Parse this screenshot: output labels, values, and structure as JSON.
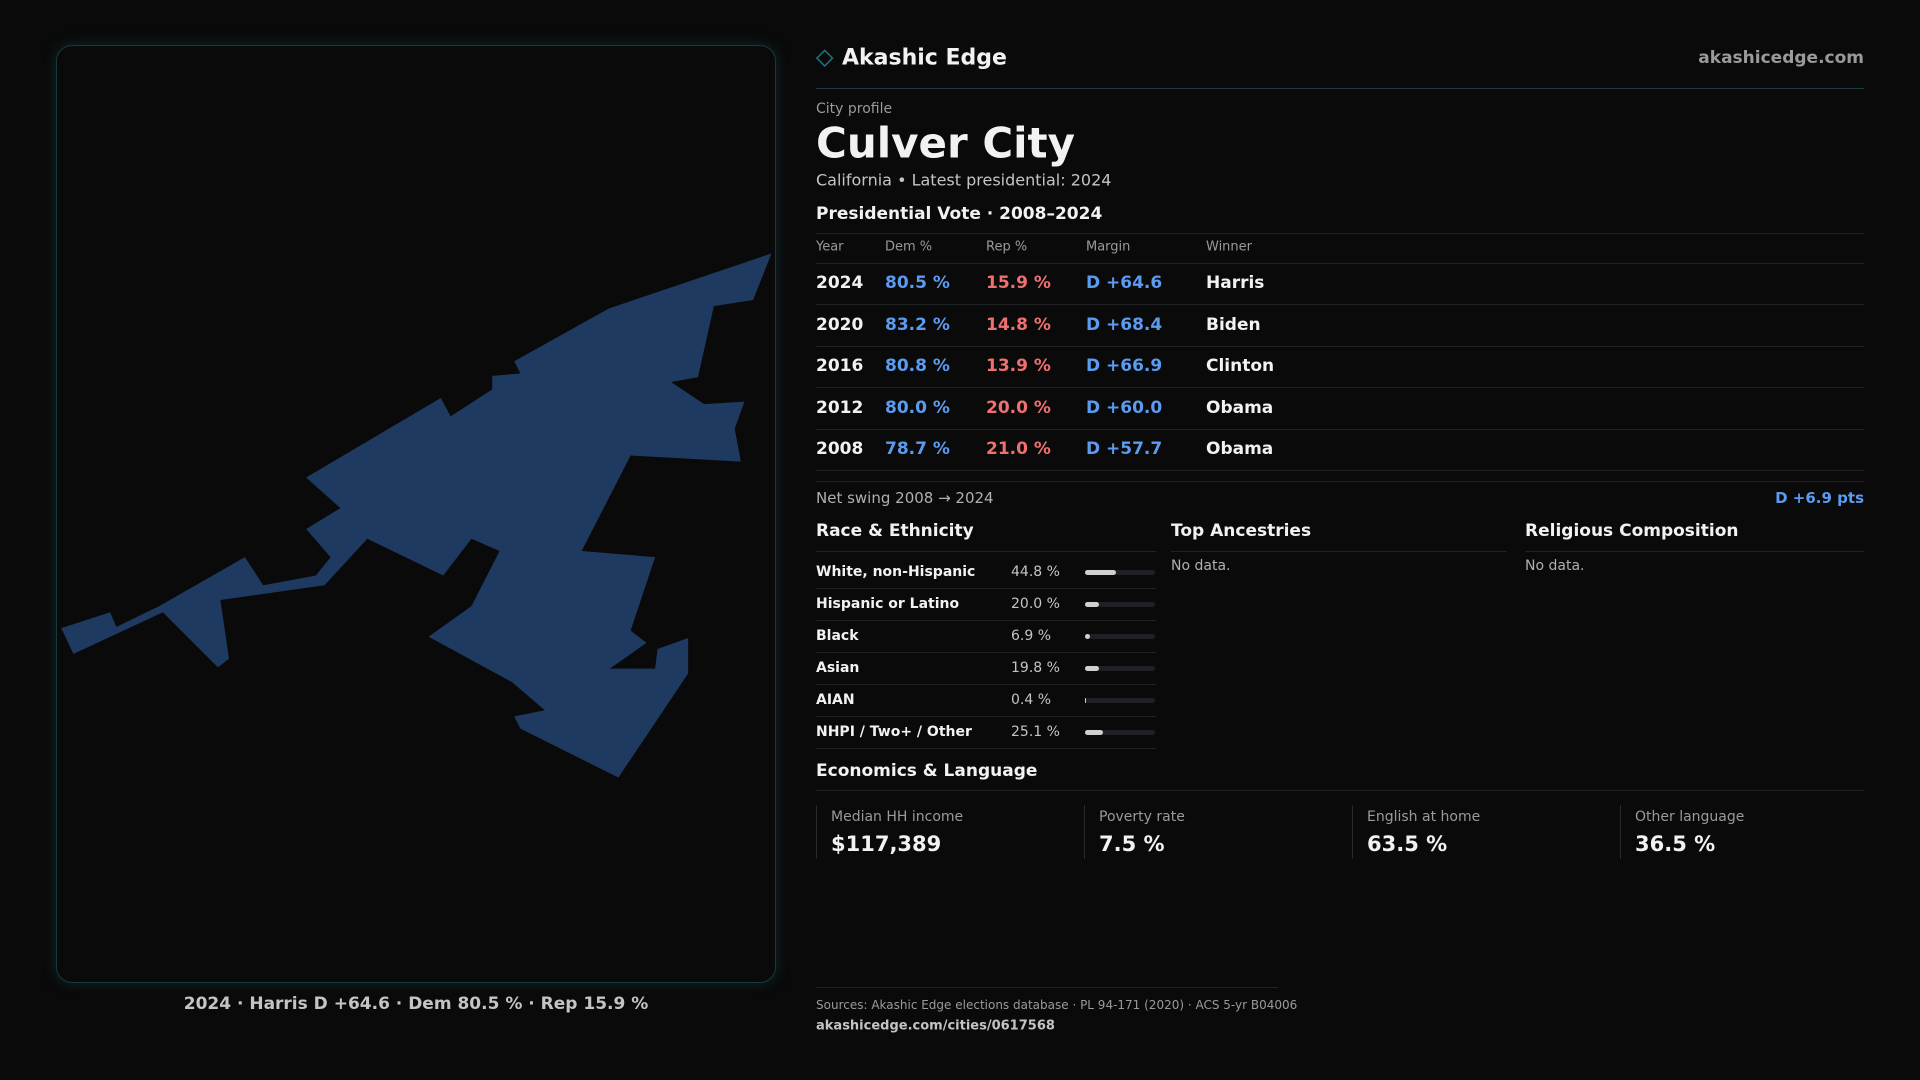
{
  "header": {
    "brand": "Akashic Edge",
    "site": "akashicedge.com"
  },
  "profile": {
    "kicker": "City profile",
    "title": "Culver City",
    "subtitle": "California • Latest presidential: 2024"
  },
  "presidential": {
    "heading": "Presidential Vote · 2008–2024",
    "columns": [
      "Year",
      "Dem %",
      "Rep %",
      "Margin",
      "Winner"
    ],
    "rows": [
      [
        "2024",
        "80.5 %",
        "15.9 %",
        "D +64.6",
        "Harris"
      ],
      [
        "2020",
        "83.2 %",
        "14.8 %",
        "D +68.4",
        "Biden"
      ],
      [
        "2016",
        "80.8 %",
        "13.9 %",
        "D +66.9",
        "Clinton"
      ],
      [
        "2012",
        "80.0 %",
        "20.0 %",
        "D +60.0",
        "Obama"
      ],
      [
        "2008",
        "78.7 %",
        "21.0 %",
        "D +57.7",
        "Obama"
      ]
    ],
    "swing_label": "Net swing 2008 → 2024",
    "swing_value": "D +6.9 pts"
  },
  "race": {
    "heading": "Race & Ethnicity",
    "rows": [
      {
        "label": "White, non-Hispanic",
        "value": 44.8,
        "value_label": "44.8 %"
      },
      {
        "label": "Hispanic or Latino",
        "value": 20.0,
        "value_label": "20.0 %"
      },
      {
        "label": "Black",
        "value": 6.9,
        "value_label": "6.9 %"
      },
      {
        "label": "Asian",
        "value": 19.8,
        "value_label": "19.8 %"
      },
      {
        "label": "AIAN",
        "value": 0.4,
        "value_label": "0.4 %"
      },
      {
        "label": "NHPI / Two+ / Other",
        "value": 25.1,
        "value_label": "25.1 %"
      }
    ]
  },
  "ancestries": {
    "heading": "Top Ancestries",
    "note": "No data."
  },
  "religion": {
    "heading": "Religious Composition",
    "note": "No data."
  },
  "economics": {
    "heading": "Economics & Language",
    "cards": [
      {
        "label": "Median HH income",
        "value": "$117,389"
      },
      {
        "label": "Poverty rate",
        "value": "7.5 %"
      },
      {
        "label": "English at home",
        "value": "63.5 %"
      },
      {
        "label": "Other language",
        "value": "36.5 %"
      }
    ]
  },
  "map_caption": "2024 · Harris D +64.6 · Dem 80.5 % · Rep 15.9 %",
  "footer": {
    "sources": "Sources: Akashic Edge elections database · PL 94-171 (2020) · ACS 5-yr B04006",
    "url": "akashicedge.com/cities/0617568"
  }
}
